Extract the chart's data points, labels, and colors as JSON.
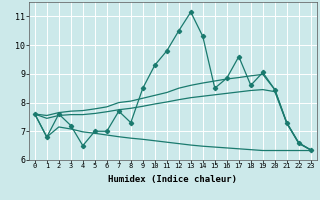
{
  "xlabel": "Humidex (Indice chaleur)",
  "ylabel": "",
  "xlim": [
    -0.5,
    23.5
  ],
  "ylim": [
    6.0,
    11.5
  ],
  "yticks": [
    6,
    7,
    8,
    9,
    10,
    11
  ],
  "xticks": [
    0,
    1,
    2,
    3,
    4,
    5,
    6,
    7,
    8,
    9,
    10,
    11,
    12,
    13,
    14,
    15,
    16,
    17,
    18,
    19,
    20,
    21,
    22,
    23
  ],
  "background_color": "#cce9ea",
  "grid_color": "#ffffff",
  "line_color": "#1a7a6e",
  "x": [
    0,
    1,
    2,
    3,
    4,
    5,
    6,
    7,
    8,
    9,
    10,
    11,
    12,
    13,
    14,
    15,
    16,
    17,
    18,
    19,
    20,
    21,
    22,
    23
  ],
  "y_main": [
    7.6,
    6.8,
    7.6,
    7.2,
    6.5,
    7.0,
    7.0,
    7.7,
    7.3,
    8.5,
    9.3,
    9.8,
    10.5,
    11.15,
    10.3,
    8.5,
    8.85,
    9.6,
    8.6,
    9.05,
    8.45,
    7.3,
    6.6,
    6.35
  ],
  "y_upper": [
    7.6,
    7.55,
    7.65,
    7.7,
    7.72,
    7.78,
    7.85,
    8.0,
    8.05,
    8.15,
    8.25,
    8.35,
    8.5,
    8.6,
    8.68,
    8.75,
    8.82,
    8.87,
    8.93,
    8.98,
    8.45,
    7.28,
    6.58,
    6.35
  ],
  "y_mid": [
    7.6,
    7.45,
    7.55,
    7.58,
    7.58,
    7.62,
    7.68,
    7.75,
    7.8,
    7.87,
    7.95,
    8.02,
    8.1,
    8.17,
    8.22,
    8.27,
    8.32,
    8.37,
    8.42,
    8.45,
    8.38,
    7.28,
    6.58,
    6.35
  ],
  "y_lower": [
    7.6,
    6.8,
    7.15,
    7.08,
    6.98,
    6.93,
    6.87,
    6.81,
    6.76,
    6.72,
    6.67,
    6.62,
    6.57,
    6.52,
    6.48,
    6.45,
    6.42,
    6.39,
    6.36,
    6.33,
    6.33,
    6.33,
    6.33,
    6.33
  ]
}
